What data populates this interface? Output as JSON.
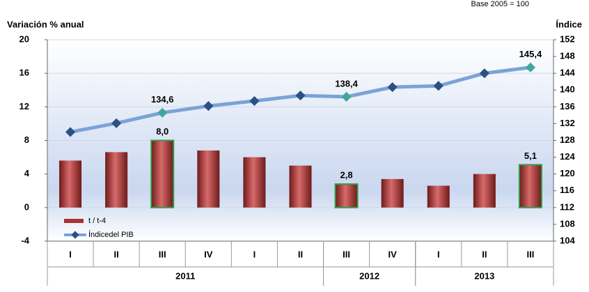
{
  "chart_data": {
    "type": "bar-line",
    "note": "Base 2005 = 100",
    "y_label": "Variación % anual",
    "y2_label": "Índice",
    "categories": [
      "I",
      "II",
      "III",
      "IV",
      "I",
      "II",
      "III",
      "IV",
      "I",
      "II",
      "III"
    ],
    "groups": [
      {
        "label": "2011",
        "span": 6
      },
      {
        "label": "2012",
        "span": 2
      },
      {
        "label": "2013",
        "span": 3
      }
    ],
    "series": [
      {
        "name": "t / t-4",
        "type": "bar",
        "color": "#a83232",
        "values": [
          5.6,
          6.6,
          8.0,
          6.8,
          6.0,
          5.0,
          2.8,
          3.4,
          2.6,
          4.0,
          5.1
        ],
        "value_labels": [
          null,
          null,
          "8,0",
          null,
          null,
          null,
          "2,8",
          null,
          null,
          null,
          "5,1"
        ]
      },
      {
        "name": "Índicedel PIB",
        "type": "line",
        "axis": "y2",
        "color": "#7aa3d6",
        "values": [
          130.0,
          132.1,
          134.6,
          136.2,
          137.4,
          138.7,
          138.4,
          140.7,
          141.0,
          144.0,
          145.4
        ],
        "value_labels": [
          null,
          null,
          "134,6",
          null,
          null,
          null,
          "138,4",
          null,
          null,
          null,
          "145,4"
        ]
      }
    ],
    "ylim": [
      -4,
      20
    ],
    "yticks": [
      -4,
      0,
      4,
      8,
      12,
      16,
      20
    ],
    "y2lim": [
      104,
      152
    ],
    "y2ticks": [
      104,
      108,
      112,
      116,
      120,
      124,
      128,
      132,
      136,
      140,
      144,
      148,
      152
    ],
    "grid": true
  }
}
